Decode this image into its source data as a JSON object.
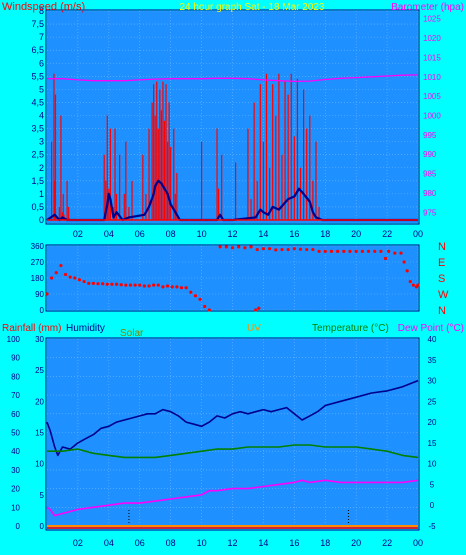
{
  "colors": {
    "background": "#00ffff",
    "plot_bg": "#1e90ff",
    "grid": "#6fb8ff",
    "wind": "#ff0000",
    "gust": "#ff0000",
    "avg": "#00008b",
    "baro": "#ff00ff",
    "winddir": "#ff0000",
    "temp": "#00008b",
    "humidity": "#00008b",
    "dewpoint": "#ff00ff",
    "green": "#008000",
    "rain": "#ff0000",
    "solar_line": "#ff8c00",
    "label_dark": "#00008b",
    "label_title": "#ffff00"
  },
  "chart_data": [
    {
      "type": "line",
      "title": "24 hour graph Sat - 18 Mar 2023",
      "ylabel": "Windspeed (m/s)",
      "y2label": "Barometer (hpa)",
      "ylim": [
        0,
        8
      ],
      "y2lim": [
        973,
        1027
      ],
      "yticks": [
        "0",
        "0,5",
        "1",
        "1,5",
        "2",
        "2,5",
        "3",
        "3,5",
        "4",
        "4,5",
        "5",
        "5,5",
        "6",
        "6,5",
        "7",
        "7,5",
        "8"
      ],
      "y2ticks": [
        975,
        980,
        985,
        990,
        995,
        1000,
        1005,
        1010,
        1015,
        1020,
        1025
      ],
      "xticks": [
        "02",
        "04",
        "06",
        "08",
        "10",
        "12",
        "14",
        "16",
        "18",
        "20",
        "22",
        "00"
      ],
      "series": [
        {
          "key": "gust",
          "x": [
            0.3,
            0.45,
            0.5,
            0.55,
            0.8,
            0.9,
            1,
            1.05,
            1.1,
            1.3,
            1.4,
            1.5,
            3.7,
            3.8,
            3.9,
            4.0,
            4.1,
            4.3,
            4.4,
            4.5,
            4.7,
            5.0,
            5.1,
            5.3,
            5.5,
            6.2,
            6.4,
            6.6,
            6.8,
            6.9,
            7.0,
            7.1,
            7.2,
            7.3,
            7.4,
            7.5,
            7.6,
            7.7,
            7.8,
            7.9,
            8.0,
            8.2,
            8.3,
            8.4,
            8.6,
            10.0,
            10.1,
            11.0,
            11.1,
            11.3,
            11.4,
            12.2,
            13.0,
            13.2,
            13.4,
            13.6,
            13.8,
            14.0,
            14.2,
            14.4,
            14.6,
            14.8,
            15.0,
            15.2,
            15.4,
            15.6,
            15.8,
            16.0,
            16.2,
            16.4,
            16.6,
            16.8,
            17.0,
            17.2,
            17.4,
            17.6,
            17.8
          ],
          "values": [
            3.0,
            5.6,
            1.5,
            4.8,
            0.5,
            4.0,
            0.3,
            1.0,
            0.2,
            1.5,
            0.5,
            0,
            2.5,
            1.5,
            4.0,
            1.2,
            3.5,
            0.5,
            3.5,
            1.0,
            2.5,
            1.0,
            3.0,
            0.5,
            1.5,
            2.5,
            1.0,
            3.5,
            4.5,
            5.2,
            4.0,
            5.3,
            3.5,
            5.0,
            4.2,
            5.3,
            3.8,
            5.2,
            3.0,
            4.5,
            2.8,
            3.5,
            1.0,
            1.8,
            0,
            3.0,
            0,
            3.5,
            1.2,
            2.5,
            0,
            2.2,
            3.5,
            0.8,
            4.5,
            1.5,
            5.2,
            3.0,
            5.6,
            2.0,
            5.2,
            4.0,
            5.6,
            2.5,
            5.3,
            4.8,
            5.6,
            3.2,
            5.4,
            2.0,
            5.0,
            3.5,
            4.0,
            1.5,
            3.0,
            0.5,
            0
          ]
        },
        {
          "key": "avg",
          "x": [
            0,
            0.5,
            0.8,
            1,
            1.3,
            1.6,
            3.7,
            3.9,
            4.0,
            4.1,
            4.3,
            4.5,
            4.9,
            5.3,
            6.3,
            6.6,
            6.9,
            7.0,
            7.2,
            7.4,
            7.6,
            7.8,
            8.0,
            8.2,
            8.4,
            8.6,
            10.0,
            11.0,
            11.2,
            11.4,
            12.0,
            13.5,
            13.8,
            14.0,
            14.3,
            14.6,
            15.0,
            15.3,
            15.6,
            16.0,
            16.3,
            16.6,
            17.0,
            17.2,
            17.4,
            17.6,
            17.8,
            18.0,
            24.0
          ],
          "values": [
            0,
            0.2,
            0,
            0.1,
            0,
            0,
            0,
            0.6,
            1.0,
            0.8,
            0.1,
            0.3,
            0,
            0.1,
            0.2,
            0.5,
            1.0,
            1.3,
            1.5,
            1.4,
            1.2,
            1.0,
            0.6,
            0.4,
            0.2,
            0,
            0,
            0,
            0.2,
            0,
            0,
            0.1,
            0.4,
            0.3,
            0.2,
            0.5,
            0.4,
            0.6,
            0.8,
            0.9,
            1.2,
            1.0,
            0.7,
            0.3,
            0.1,
            0.05,
            0,
            0,
            0
          ]
        },
        {
          "key": "baro",
          "axis": "y2",
          "x": [
            0,
            1,
            2,
            3,
            4,
            5,
            6,
            7,
            8,
            9,
            10,
            11,
            12,
            13,
            14,
            15,
            16,
            17,
            18,
            19,
            20,
            21,
            22,
            23,
            24
          ],
          "values": [
            1009.5,
            1009.5,
            1009.2,
            1009,
            1009,
            1009,
            1009.2,
            1009.4,
            1009.5,
            1009.5,
            1009.5,
            1009.6,
            1009.6,
            1009.5,
            1009.2,
            1009,
            1008.8,
            1008.9,
            1009.3,
            1009.6,
            1009.8,
            1010,
            1010.2,
            1010.4,
            1010.5
          ]
        }
      ]
    },
    {
      "type": "scatter",
      "ylabel": "",
      "ylim": [
        0,
        360
      ],
      "yticks": [
        0,
        90,
        180,
        270,
        360
      ],
      "y2ticks": [
        "N",
        "W",
        "S",
        "E",
        "N"
      ],
      "series": [
        {
          "key": "winddir",
          "x": [
            0,
            0.3,
            0.6,
            0.9,
            1.2,
            1.5,
            1.8,
            2.1,
            2.4,
            2.7,
            3.0,
            3.3,
            3.6,
            3.9,
            4.2,
            4.5,
            4.8,
            5.1,
            5.4,
            5.7,
            6.0,
            6.3,
            6.6,
            6.9,
            7.2,
            7.5,
            7.8,
            8.1,
            8.4,
            8.7,
            9.0,
            9.3,
            9.6,
            9.9,
            10.2,
            10.5,
            13.5,
            13.7,
            11.2,
            11.6,
            12.0,
            12.4,
            12.8,
            13.2,
            13.6,
            14.0,
            14.4,
            14.8,
            15.2,
            15.6,
            16.0,
            16.4,
            16.8,
            17.2,
            17.6,
            18.0,
            18.4,
            18.8,
            19.2,
            19.6,
            20.0,
            20.4,
            20.8,
            21.2,
            21.6,
            21.9,
            22.1,
            22.5,
            22.9,
            23.1,
            23.3,
            23.5,
            23.7,
            23.9,
            24.0
          ],
          "values": [
            90,
            180,
            210,
            250,
            200,
            185,
            180,
            170,
            160,
            150,
            150,
            148,
            148,
            145,
            145,
            145,
            142,
            140,
            140,
            140,
            140,
            135,
            135,
            140,
            140,
            130,
            135,
            130,
            130,
            125,
            125,
            100,
            80,
            60,
            20,
            0,
            0,
            10,
            355,
            355,
            350,
            355,
            350,
            355,
            340,
            345,
            345,
            338,
            340,
            340,
            345,
            342,
            340,
            340,
            330,
            330,
            330,
            330,
            330,
            330,
            330,
            330,
            330,
            330,
            330,
            290,
            330,
            320,
            320,
            270,
            220,
            160,
            140,
            130,
            140
          ]
        }
      ]
    },
    {
      "type": "line",
      "legend": [
        "Rainfall (mm)",
        "Humidity",
        "Solar",
        "UV",
        "Temperature (°C)",
        "Dew Point (°C)"
      ],
      "ylim": [
        0,
        100
      ],
      "y2lim": [
        -5,
        40
      ],
      "yticks": [
        0,
        10,
        20,
        30,
        40,
        50,
        60,
        70,
        80,
        90,
        100
      ],
      "rain_ticks": [
        0,
        5,
        10,
        15,
        20,
        25,
        30
      ],
      "y2ticks": [
        -5,
        0,
        5,
        10,
        15,
        20,
        25,
        30,
        35,
        40
      ],
      "xticks": [
        "02",
        "04",
        "06",
        "08",
        "10",
        "12",
        "14",
        "16",
        "18",
        "20",
        "22",
        "00"
      ],
      "series": [
        {
          "key": "temp",
          "axis": "y2",
          "x": [
            0,
            0.2,
            0.5,
            0.7,
            1.0,
            1.5,
            2.0,
            2.5,
            3.0,
            3.5,
            4.0,
            4.5,
            5.0,
            5.5,
            6.0,
            6.5,
            7.0,
            7.5,
            8.0,
            8.5,
            9.0,
            9.5,
            10.0,
            10.5,
            11.0,
            11.5,
            12.0,
            12.5,
            13.0,
            13.5,
            14.0,
            14.5,
            15.0,
            15.5,
            16.0,
            16.5,
            17.0,
            17.5,
            18.0,
            19.0,
            20.0,
            21.0,
            22.0,
            23.0,
            24.0
          ],
          "values": [
            20,
            18,
            14,
            12,
            14,
            13.5,
            15,
            16,
            17,
            18.5,
            19,
            20,
            20.5,
            21,
            21.5,
            22,
            22,
            23,
            22.5,
            21.5,
            20,
            19.5,
            19,
            20,
            21.5,
            21,
            22,
            22.5,
            22,
            22.5,
            23,
            22.5,
            23,
            23.5,
            22,
            20.5,
            21.5,
            22.5,
            24,
            25,
            26,
            27,
            27.5,
            28.5,
            30
          ]
        },
        {
          "key": "dewpoint",
          "axis": "y2",
          "x": [
            0,
            0.2,
            0.5,
            1.0,
            1.5,
            2.0,
            3.0,
            4.0,
            5.0,
            6.0,
            7.0,
            8.0,
            9.0,
            10.0,
            10.5,
            11.0,
            12.0,
            13.0,
            14.0,
            15.0,
            16.0,
            16.5,
            17.0,
            18.0,
            19.0,
            20.0,
            21.0,
            22.0,
            23.0,
            24.0
          ],
          "values": [
            -0.5,
            -1,
            -2.5,
            -2,
            -1.5,
            -1,
            -0.5,
            0,
            0.5,
            0.5,
            1,
            1.5,
            2,
            2.5,
            3.5,
            3.5,
            4,
            4,
            4.5,
            5,
            5.5,
            6,
            5.5,
            6,
            5.5,
            5.5,
            5.5,
            5.5,
            5.5,
            6
          ]
        },
        {
          "key": "green",
          "axis": "y2",
          "x": [
            0,
            1,
            2,
            3,
            4,
            5,
            6,
            7,
            8,
            9,
            10,
            11,
            12,
            13,
            14,
            15,
            16,
            17,
            18,
            19,
            20,
            21,
            22,
            23,
            24
          ],
          "values": [
            13,
            13,
            13.5,
            12.5,
            12,
            11.5,
            11.5,
            11.5,
            12,
            12.5,
            13,
            13.5,
            13.5,
            14,
            14,
            14,
            14.5,
            14.5,
            14,
            14,
            14,
            13.5,
            13,
            12,
            11.5
          ]
        }
      ]
    }
  ]
}
